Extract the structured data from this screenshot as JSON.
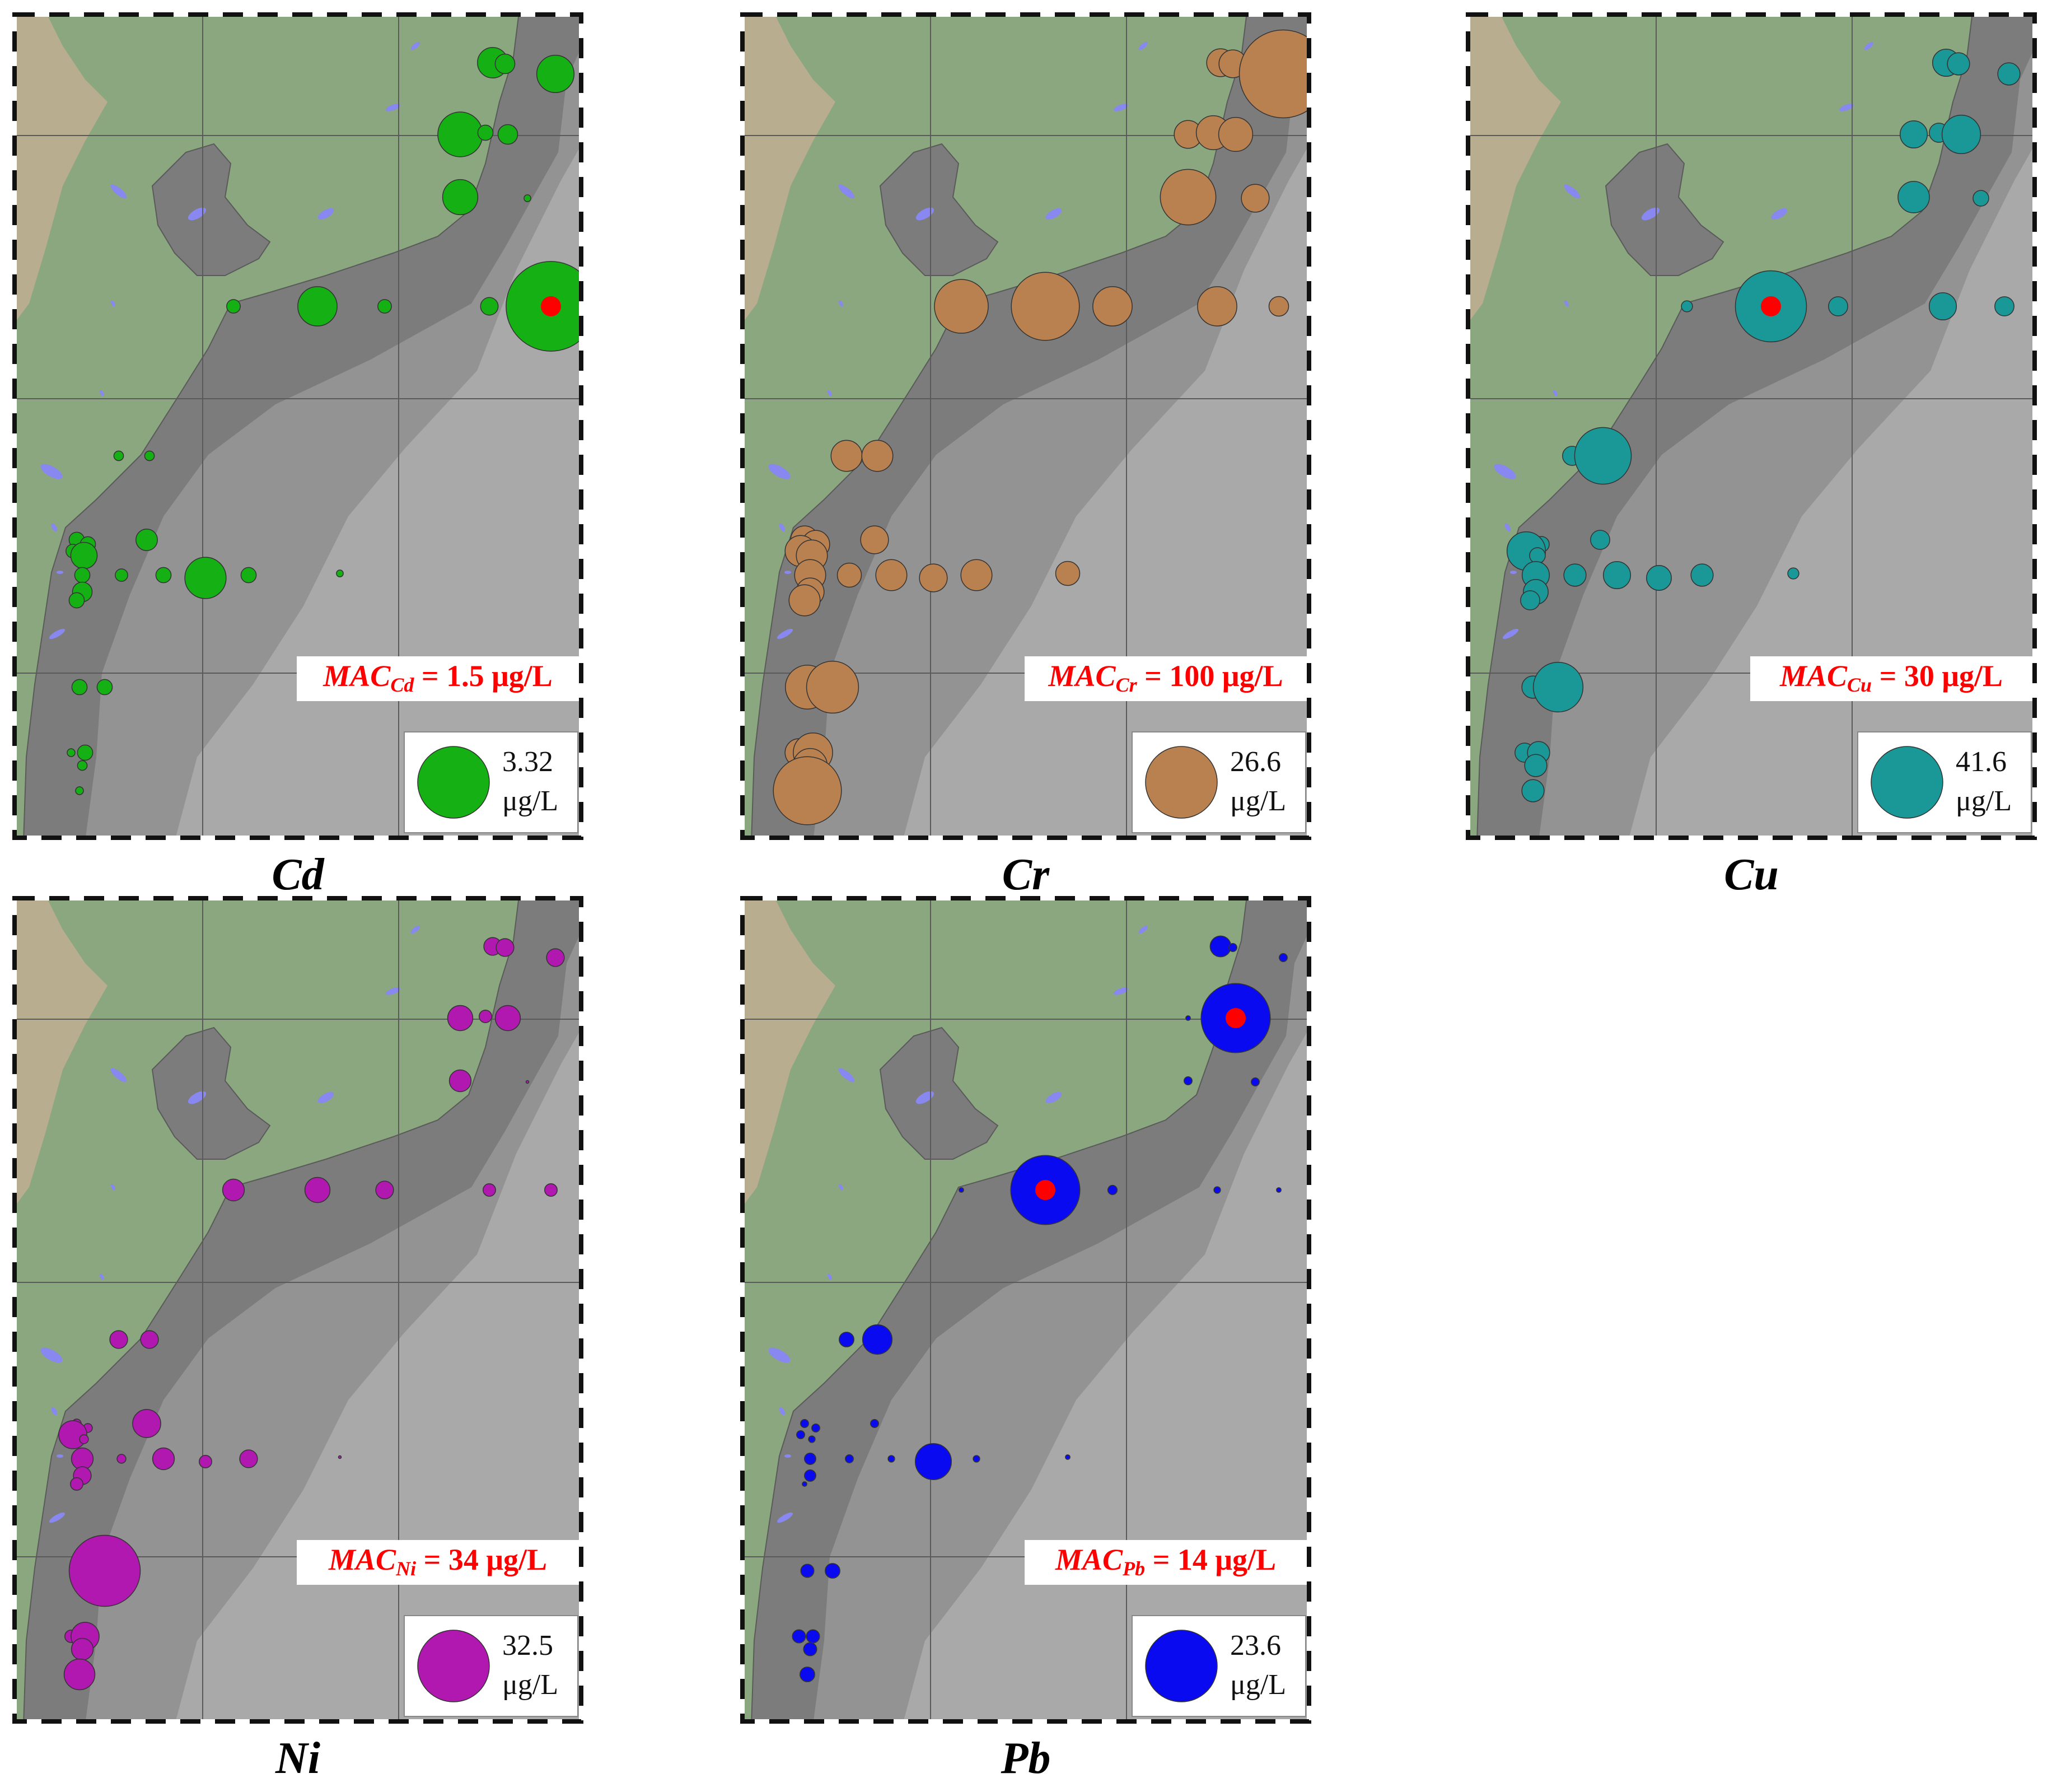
{
  "colors": {
    "land_light": "#b9ad90",
    "land_green": "#8aa77f",
    "shelf_dark": "#7c7c7c",
    "sea_mid": "#939393",
    "sea_light": "#a9a9a9",
    "lake": "#8888f0",
    "exceed": "#ff0000",
    "mac_text": "#ff0000"
  },
  "panels": [
    {
      "element": "Cd",
      "caption": "Cd",
      "color": "#14b014",
      "mac_label": "MAC",
      "mac_sub": "Cd",
      "mac_value": "= 1.5 μg/L",
      "legend_value": "3.32",
      "legend_unit": "μg/L",
      "legend_amount": 3.32,
      "sites": [
        {
          "id": "N1",
          "v": 0.6
        },
        {
          "id": "N2",
          "v": 0.25
        },
        {
          "id": "N3",
          "v": 0.9
        },
        {
          "id": "N4",
          "v": 1.3
        },
        {
          "id": "N5",
          "v": 0.15
        },
        {
          "id": "N6",
          "v": 0.25
        },
        {
          "id": "N7",
          "v": 0.8
        },
        {
          "id": "N8",
          "v": 0.03
        },
        {
          "id": "T1",
          "v": 0.12
        },
        {
          "id": "T2",
          "v": 1.0
        },
        {
          "id": "T3",
          "v": 0.12
        },
        {
          "id": "T4",
          "v": 0.2
        },
        {
          "id": "T5",
          "v": 5.2,
          "exceed": true
        },
        {
          "id": "S1",
          "v": 0.06
        },
        {
          "id": "S2",
          "v": 0.06
        },
        {
          "id": "S3",
          "v": 0.15
        },
        {
          "id": "S4",
          "v": 0.15
        },
        {
          "id": "S5",
          "v": 0.3
        },
        {
          "id": "S6",
          "v": 0.12
        },
        {
          "id": "S7",
          "v": 0.45
        },
        {
          "id": "S8",
          "v": 0.15
        },
        {
          "id": "S9",
          "v": 0.1
        },
        {
          "id": "S10",
          "v": 0.15
        },
        {
          "id": "S11",
          "v": 1.1
        },
        {
          "id": "S12",
          "v": 0.15
        },
        {
          "id": "S13",
          "v": 0.03
        },
        {
          "id": "S14",
          "v": 0.25
        },
        {
          "id": "S15",
          "v": 0.15
        },
        {
          "id": "S16",
          "v": 0.15
        },
        {
          "id": "S17",
          "v": 0.15
        },
        {
          "id": "S18",
          "v": 0.04
        },
        {
          "id": "S19",
          "v": 0.15
        },
        {
          "id": "S20",
          "v": 0.06
        },
        {
          "id": "S21",
          "v": 0.04
        }
      ]
    },
    {
      "element": "Cr",
      "caption": "Cr",
      "color": "#b98050",
      "mac_label": "MAC",
      "mac_sub": "Cr",
      "mac_value": "= 100 μg/L",
      "legend_value": "26.6",
      "legend_unit": "μg/L",
      "legend_amount": 26.6,
      "sites": [
        {
          "id": "N1",
          "v": 4
        },
        {
          "id": "N2",
          "v": 4
        },
        {
          "id": "N3",
          "v": 40
        },
        {
          "id": "N4",
          "v": 4
        },
        {
          "id": "N5",
          "v": 6
        },
        {
          "id": "N6",
          "v": 6
        },
        {
          "id": "N7",
          "v": 16
        },
        {
          "id": "N8",
          "v": 4
        },
        {
          "id": "T1",
          "v": 15
        },
        {
          "id": "T2",
          "v": 24
        },
        {
          "id": "T3",
          "v": 8
        },
        {
          "id": "T4",
          "v": 8
        },
        {
          "id": "T5",
          "v": 2
        },
        {
          "id": "S1",
          "v": 5
        },
        {
          "id": "S2",
          "v": 5
        },
        {
          "id": "S3",
          "v": 4
        },
        {
          "id": "S4",
          "v": 4
        },
        {
          "id": "S5",
          "v": 4
        },
        {
          "id": "S6",
          "v": 5
        },
        {
          "id": "S7",
          "v": 5
        },
        {
          "id": "S8",
          "v": 5
        },
        {
          "id": "S9",
          "v": 3
        },
        {
          "id": "S10",
          "v": 5
        },
        {
          "id": "S11",
          "v": 4
        },
        {
          "id": "S12",
          "v": 5
        },
        {
          "id": "S13",
          "v": 3
        },
        {
          "id": "S14",
          "v": 4
        },
        {
          "id": "S15",
          "v": 5
        },
        {
          "id": "S16",
          "v": 10
        },
        {
          "id": "S17",
          "v": 14
        },
        {
          "id": "S18",
          "v": 4
        },
        {
          "id": "S19",
          "v": 8
        },
        {
          "id": "S20",
          "v": 6
        },
        {
          "id": "S21",
          "v": 24
        }
      ]
    },
    {
      "element": "Cu",
      "caption": "Cu",
      "color": "#1a9898",
      "mac_label": "MAC",
      "mac_sub": "Cu",
      "mac_value": "= 30 μg/L",
      "legend_value": "41.6",
      "legend_unit": "μg/L",
      "legend_amount": 41.6,
      "sites": [
        {
          "id": "N1",
          "v": 6
        },
        {
          "id": "N2",
          "v": 4
        },
        {
          "id": "N3",
          "v": 4
        },
        {
          "id": "N4",
          "v": 6
        },
        {
          "id": "N5",
          "v": 3
        },
        {
          "id": "N6",
          "v": 12
        },
        {
          "id": "N7",
          "v": 8
        },
        {
          "id": "N8",
          "v": 2
        },
        {
          "id": "T1",
          "v": 1
        },
        {
          "id": "T2",
          "v": 41,
          "exceed": true
        },
        {
          "id": "T3",
          "v": 3
        },
        {
          "id": "T4",
          "v": 6
        },
        {
          "id": "T5",
          "v": 3
        },
        {
          "id": "S1",
          "v": 3
        },
        {
          "id": "S2",
          "v": 26
        },
        {
          "id": "S3",
          "v": 1
        },
        {
          "id": "S4",
          "v": 2
        },
        {
          "id": "S5",
          "v": 3
        },
        {
          "id": "S6",
          "v": 12
        },
        {
          "id": "S7",
          "v": 2
        },
        {
          "id": "S8",
          "v": 6
        },
        {
          "id": "S9",
          "v": 4
        },
        {
          "id": "S10",
          "v": 6
        },
        {
          "id": "S11",
          "v": 5
        },
        {
          "id": "S12",
          "v": 4
        },
        {
          "id": "S13",
          "v": 1
        },
        {
          "id": "S14",
          "v": 5
        },
        {
          "id": "S15",
          "v": 3
        },
        {
          "id": "S16",
          "v": 4
        },
        {
          "id": "S17",
          "v": 20
        },
        {
          "id": "S18",
          "v": 3
        },
        {
          "id": "S19",
          "v": 4
        },
        {
          "id": "S20",
          "v": 4
        },
        {
          "id": "S21",
          "v": 4
        }
      ]
    },
    {
      "element": "Ni",
      "caption": "Ni",
      "color": "#b018b0",
      "mac_label": "MAC",
      "mac_sub": "Ni",
      "mac_value": "= 34 μg/L",
      "legend_value": "32.5",
      "legend_unit": "μg/L",
      "legend_amount": 32.5,
      "sites": [
        {
          "id": "N1",
          "v": 2
        },
        {
          "id": "N2",
          "v": 2
        },
        {
          "id": "N3",
          "v": 2
        },
        {
          "id": "N4",
          "v": 4
        },
        {
          "id": "N5",
          "v": 1
        },
        {
          "id": "N6",
          "v": 4
        },
        {
          "id": "N7",
          "v": 3
        },
        {
          "id": "N8",
          "v": 0.05
        },
        {
          "id": "T1",
          "v": 3
        },
        {
          "id": "T2",
          "v": 4
        },
        {
          "id": "T3",
          "v": 2
        },
        {
          "id": "T4",
          "v": 1
        },
        {
          "id": "T5",
          "v": 1
        },
        {
          "id": "S1",
          "v": 2
        },
        {
          "id": "S2",
          "v": 2
        },
        {
          "id": "S3",
          "v": 0.5
        },
        {
          "id": "S4",
          "v": 0.5
        },
        {
          "id": "S5",
          "v": 5
        },
        {
          "id": "S6",
          "v": 5
        },
        {
          "id": "S7",
          "v": 0.5
        },
        {
          "id": "S8",
          "v": 3
        },
        {
          "id": "S9",
          "v": 0.5
        },
        {
          "id": "S10",
          "v": 3
        },
        {
          "id": "S11",
          "v": 1
        },
        {
          "id": "S12",
          "v": 2
        },
        {
          "id": "S13",
          "v": 0.05
        },
        {
          "id": "S14",
          "v": 2
        },
        {
          "id": "S15",
          "v": 1
        },
        {
          "id": "S16",
          "v": 1
        },
        {
          "id": "S17",
          "v": 32
        },
        {
          "id": "S18",
          "v": 1
        },
        {
          "id": "S19",
          "v": 5
        },
        {
          "id": "S20",
          "v": 3
        },
        {
          "id": "S21",
          "v": 6
        }
      ]
    },
    {
      "element": "Pb",
      "caption": "Pb",
      "color": "#0a0af0",
      "mac_label": "MAC",
      "mac_sub": "Pb",
      "mac_value": "= 14 μg/L",
      "legend_value": "23.6",
      "legend_unit": "μg/L",
      "legend_amount": 23.6,
      "sites": [
        {
          "id": "N1",
          "v": 2
        },
        {
          "id": "N2",
          "v": 0.3
        },
        {
          "id": "N3",
          "v": 0.3
        },
        {
          "id": "N4",
          "v": 0.1
        },
        {
          "id": "N5",
          "v": 0.1
        },
        {
          "id": "N6",
          "v": 22,
          "exceed": true
        },
        {
          "id": "N7",
          "v": 0.3
        },
        {
          "id": "N8",
          "v": 0.3
        },
        {
          "id": "T1",
          "v": 0.1
        },
        {
          "id": "T2",
          "v": 22,
          "exceed": true
        },
        {
          "id": "T3",
          "v": 0.4
        },
        {
          "id": "T4",
          "v": 0.2
        },
        {
          "id": "T5",
          "v": 0.1
        },
        {
          "id": "S1",
          "v": 1
        },
        {
          "id": "S2",
          "v": 4
        },
        {
          "id": "S3",
          "v": 0.3
        },
        {
          "id": "S4",
          "v": 0.3
        },
        {
          "id": "S5",
          "v": 0.3
        },
        {
          "id": "S6",
          "v": 0.3
        },
        {
          "id": "S7",
          "v": 0.2
        },
        {
          "id": "S8",
          "v": 0.6
        },
        {
          "id": "S9",
          "v": 0.3
        },
        {
          "id": "S10",
          "v": 0.2
        },
        {
          "id": "S11",
          "v": 6
        },
        {
          "id": "S12",
          "v": 0.2
        },
        {
          "id": "S13",
          "v": 0.1
        },
        {
          "id": "S14",
          "v": 0.6
        },
        {
          "id": "S15",
          "v": 0.1
        },
        {
          "id": "S16",
          "v": 0.8
        },
        {
          "id": "S17",
          "v": 1
        },
        {
          "id": "S18",
          "v": 0.8
        },
        {
          "id": "S19",
          "v": 0.8
        },
        {
          "id": "S20",
          "v": 0.8
        },
        {
          "id": "S21",
          "v": 1
        }
      ]
    }
  ]
}
